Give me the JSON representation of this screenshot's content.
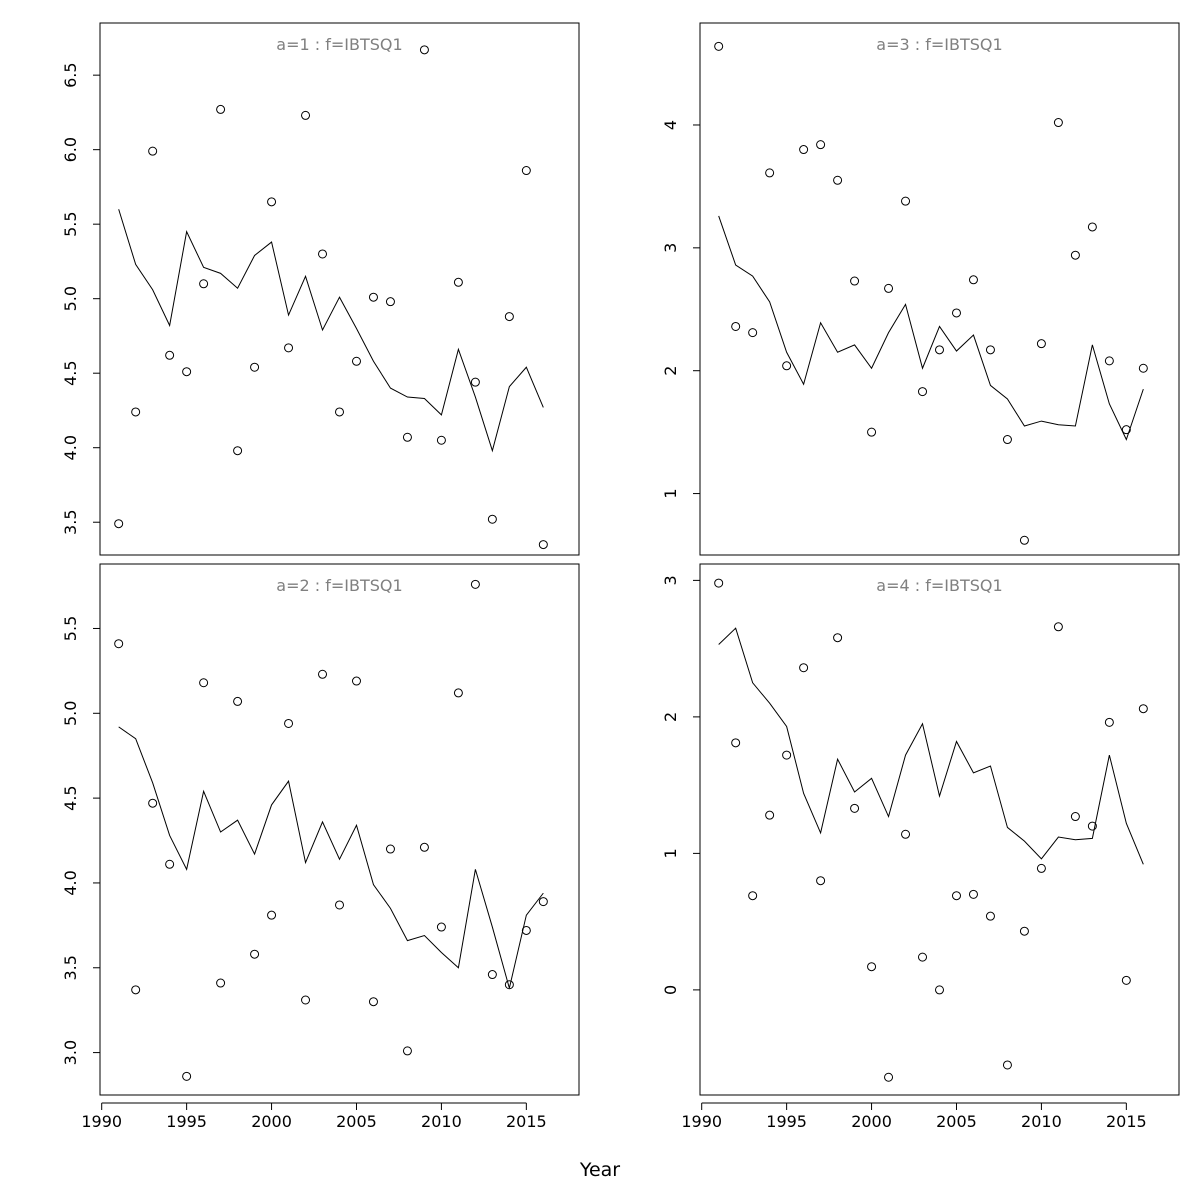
{
  "chart_data": {
    "type": "scatter",
    "xlabel": "Year",
    "x": [
      1991,
      1992,
      1993,
      1994,
      1995,
      1996,
      1997,
      1998,
      1999,
      2000,
      2001,
      2002,
      2003,
      2004,
      2005,
      2006,
      2007,
      2008,
      2009,
      2010,
      2011,
      2012,
      2013,
      2014,
      2015,
      2016
    ],
    "xticks": [
      1990,
      1995,
      2000,
      2005,
      2010,
      2015
    ],
    "xlim": [
      1989.9,
      2018.1
    ],
    "grid": false,
    "panels": [
      {
        "title": "a=1  :  f=IBTSQ1",
        "ylim": [
          3.28,
          6.85
        ],
        "yticks": [
          "3.5",
          "4.0",
          "4.5",
          "5.0",
          "5.5",
          "6.0",
          "6.5"
        ],
        "observed": [
          3.49,
          4.24,
          5.99,
          4.62,
          4.51,
          5.1,
          6.27,
          3.98,
          4.54,
          5.65,
          4.67,
          6.23,
          5.3,
          4.24,
          4.58,
          5.01,
          4.98,
          4.07,
          6.67,
          4.05,
          5.11,
          4.44,
          3.52,
          4.88,
          5.86,
          3.35
        ],
        "fitted": [
          5.6,
          5.23,
          5.06,
          4.82,
          5.45,
          5.21,
          5.17,
          5.07,
          5.29,
          5.38,
          4.89,
          5.15,
          4.79,
          5.01,
          4.8,
          4.58,
          4.4,
          4.34,
          4.33,
          4.22,
          4.66,
          4.34,
          3.98,
          4.41,
          4.54,
          4.27
        ]
      },
      {
        "title": "a=3  :  f=IBTSQ1",
        "ylim": [
          0.5,
          4.83
        ],
        "yticks": [
          "1",
          "2",
          "3",
          "4"
        ],
        "observed": [
          4.64,
          2.36,
          2.31,
          3.61,
          2.04,
          3.8,
          3.84,
          3.55,
          2.73,
          1.5,
          2.67,
          3.38,
          1.83,
          2.17,
          2.47,
          2.74,
          2.17,
          1.44,
          0.62,
          2.22,
          4.02,
          2.94,
          3.17,
          2.08,
          1.52,
          2.02
        ],
        "fitted": [
          3.26,
          2.86,
          2.77,
          2.56,
          2.15,
          1.89,
          2.39,
          2.15,
          2.21,
          2.02,
          2.31,
          2.54,
          2.02,
          2.36,
          2.16,
          2.29,
          1.88,
          1.77,
          1.55,
          1.59,
          1.56,
          1.55,
          2.21,
          1.73,
          1.44,
          1.85
        ]
      },
      {
        "title": "a=2  :  f=IBTSQ1",
        "ylim": [
          2.75,
          5.88
        ],
        "yticks": [
          "3.0",
          "3.5",
          "4.0",
          "4.5",
          "5.0",
          "5.5"
        ],
        "observed": [
          5.41,
          3.37,
          4.47,
          4.11,
          2.86,
          5.18,
          3.41,
          5.07,
          3.58,
          3.81,
          4.94,
          3.31,
          5.23,
          3.87,
          5.19,
          3.3,
          4.2,
          3.01,
          4.21,
          3.74,
          5.12,
          5.76,
          3.46,
          3.4,
          3.72,
          3.89
        ],
        "fitted": [
          4.92,
          4.85,
          4.59,
          4.28,
          4.08,
          4.54,
          4.3,
          4.37,
          4.17,
          4.46,
          4.6,
          4.12,
          4.36,
          4.14,
          4.34,
          3.99,
          3.85,
          3.66,
          3.69,
          3.59,
          3.5,
          4.08,
          3.74,
          3.38,
          3.81,
          3.94
        ]
      },
      {
        "title": "a=4  :  f=IBTSQ1",
        "ylim": [
          -0.77,
          3.12
        ],
        "yticks": [
          "0",
          "1",
          "2",
          "3"
        ],
        "observed": [
          2.98,
          1.81,
          0.69,
          1.28,
          1.72,
          2.36,
          0.8,
          2.58,
          1.33,
          0.17,
          -0.64,
          1.14,
          0.24,
          0.0,
          0.69,
          0.7,
          0.54,
          -0.55,
          0.43,
          0.89,
          2.66,
          1.27,
          1.2,
          1.96,
          0.07,
          2.06
        ],
        "fitted": [
          2.53,
          2.65,
          2.25,
          2.1,
          1.93,
          1.44,
          1.15,
          1.69,
          1.45,
          1.55,
          1.27,
          1.72,
          1.95,
          1.42,
          1.82,
          1.59,
          1.64,
          1.19,
          1.09,
          0.96,
          1.12,
          1.1,
          1.11,
          1.72,
          1.22,
          0.92
        ]
      }
    ]
  }
}
